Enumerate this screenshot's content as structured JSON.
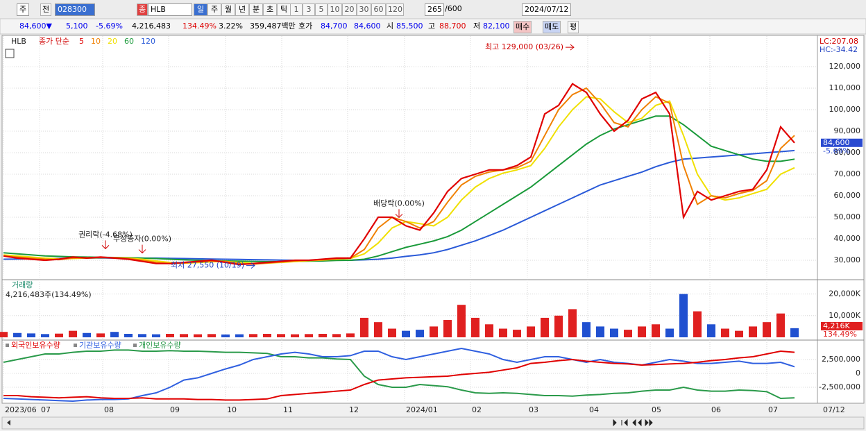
{
  "toolbar": {
    "market": "주",
    "prev": "전",
    "code": "028300",
    "badge": "종",
    "name": "HLB",
    "periods": [
      "일",
      "주",
      "월",
      "년",
      "분",
      "초",
      "틱"
    ],
    "intervals": [
      "1",
      "3",
      "5",
      "10",
      "20",
      "30",
      "60",
      "120"
    ],
    "count": "265",
    "max": "/600",
    "date": "2024/07/12"
  },
  "quote": [
    {
      "text": "84,600▼",
      "color": "#0000ee"
    },
    {
      "text": "5,100",
      "color": "#0000ee"
    },
    {
      "text": "-5.69%",
      "color": "#0000ee"
    },
    {
      "text": "4,216,483",
      "color": "#000000"
    },
    {
      "text": "134.49%",
      "color": "#dd0000"
    },
    {
      "text": "3.22%",
      "color": "#000000"
    },
    {
      "text": "359,487백만",
      "color": "#000000"
    },
    {
      "text": "호가",
      "color": "#000000"
    },
    {
      "text": "84,700",
      "color": "#0000ee"
    },
    {
      "text": "84,600",
      "color": "#0000ee"
    },
    {
      "text": "시",
      "color": "#000000"
    },
    {
      "text": "85,500",
      "color": "#0000ee"
    },
    {
      "text": "고",
      "color": "#000000"
    },
    {
      "text": "88,700",
      "color": "#dd0000"
    },
    {
      "text": "저",
      "color": "#000000"
    },
    {
      "text": "82,100",
      "color": "#0000ee"
    }
  ],
  "buttons": [
    "매수",
    "매도",
    "평"
  ],
  "xaxis": {
    "xlim": [
      0,
      57
    ],
    "xticks": [
      {
        "value": 0,
        "label": "2023/06"
      },
      {
        "value": 2.6,
        "label": "07"
      },
      {
        "value": 7.15,
        "label": "08"
      },
      {
        "value": 11.9,
        "label": "09"
      },
      {
        "value": 16,
        "label": "10"
      },
      {
        "value": 20.05,
        "label": "11"
      },
      {
        "value": 24.8,
        "label": "12"
      },
      {
        "value": 28.9,
        "label": "2024/01"
      },
      {
        "value": 33.65,
        "label": "02"
      },
      {
        "value": 37.75,
        "label": "03"
      },
      {
        "value": 42.1,
        "label": "04"
      },
      {
        "value": 46.6,
        "label": "05"
      },
      {
        "value": 50.9,
        "label": "06"
      },
      {
        "value": 55,
        "label": "07"
      }
    ],
    "end_label": "07/12"
  },
  "chart_data": [
    {
      "type": "line",
      "title": "HLB",
      "legend_prefix": "종가 단순",
      "ylim": [
        21300,
        134200
      ],
      "yticks": [
        {
          "value": 30000,
          "label": "30,000"
        },
        {
          "value": 40000,
          "label": "40,000"
        },
        {
          "value": 50000,
          "label": "50,000"
        },
        {
          "value": 60000,
          "label": "60,000"
        },
        {
          "value": 70000,
          "label": "70,000"
        },
        {
          "value": 80000,
          "label": "80,000"
        },
        {
          "value": 90000,
          "label": "90,000"
        },
        {
          "value": 100000,
          "label": "100,000"
        },
        {
          "value": 110000,
          "label": "110,000"
        },
        {
          "value": 120000,
          "label": "120,000"
        }
      ],
      "grid": true,
      "lc": "LC:207.08",
      "hc": "HC:-34.42",
      "current_label": "84,600",
      "current_change": "-5.69%",
      "high": {
        "text": "최고 129,000 (03/26)",
        "x": 41.1,
        "value": 129000
      },
      "low": {
        "text": "최저 27,550 (10/19)",
        "x": 18.1,
        "value": 27550
      },
      "events": [
        {
          "text": "권리락(-4.68%)",
          "x": 7.35
        },
        {
          "text": "무상증자(0.00%)",
          "x": 10
        },
        {
          "text": "배당락(0.00%)",
          "x": 28.5
        }
      ],
      "series": [
        {
          "name": "5",
          "color": "#e00000",
          "values": [
            32000,
            31000,
            30500,
            30000,
            30500,
            31500,
            31000,
            31500,
            31000,
            30500,
            29500,
            28500,
            28500,
            29000,
            29500,
            30000,
            29000,
            28000,
            28500,
            29000,
            29500,
            30000,
            30000,
            30500,
            31000,
            31000,
            40000,
            50000,
            50000,
            46000,
            44000,
            52000,
            62000,
            68000,
            70000,
            72000,
            72000,
            74000,
            78000,
            98000,
            102000,
            112000,
            108000,
            98000,
            90000,
            95000,
            105000,
            108000,
            98000,
            50000,
            62000,
            58000,
            60000,
            62000,
            63000,
            72000,
            92000,
            84600
          ]
        },
        {
          "name": "10",
          "color": "#f08000",
          "values": [
            32000,
            31500,
            31000,
            30500,
            30300,
            31000,
            31200,
            31300,
            31200,
            30800,
            30000,
            29000,
            28500,
            28700,
            29200,
            29700,
            29500,
            28500,
            28200,
            28700,
            29200,
            29700,
            30000,
            30200,
            30700,
            31000,
            35000,
            45000,
            50000,
            48000,
            45000,
            48000,
            57000,
            65000,
            69000,
            71000,
            72000,
            73000,
            76000,
            88000,
            100000,
            107000,
            110000,
            103000,
            94000,
            92000,
            100000,
            106000,
            103000,
            74000,
            56000,
            60000,
            59000,
            61000,
            62500,
            67000,
            82000,
            88000
          ]
        },
        {
          "name": "20",
          "color": "#f0e000",
          "values": [
            32500,
            32000,
            31500,
            31000,
            30700,
            30800,
            31000,
            31200,
            31200,
            31000,
            30500,
            29700,
            29000,
            28700,
            28900,
            29300,
            29500,
            29000,
            28600,
            28700,
            29000,
            29400,
            29800,
            30100,
            30500,
            30800,
            33000,
            38000,
            45000,
            48000,
            47000,
            46000,
            50000,
            58000,
            64000,
            68000,
            70500,
            72000,
            74000,
            82000,
            92000,
            100000,
            106000,
            105000,
            99000,
            94000,
            96000,
            102000,
            104000,
            88000,
            70000,
            60000,
            58000,
            59000,
            61000,
            63000,
            70000,
            73000
          ]
        },
        {
          "name": "60",
          "color": "#1a9a3a",
          "values": [
            33500,
            33000,
            32500,
            32000,
            31800,
            31600,
            31500,
            31400,
            31300,
            31200,
            31000,
            30800,
            30500,
            30200,
            30000,
            29800,
            29700,
            29600,
            29500,
            29400,
            29400,
            29500,
            29600,
            29700,
            29900,
            30000,
            30500,
            32000,
            34000,
            36000,
            37500,
            39000,
            41000,
            44000,
            48000,
            52000,
            56000,
            60000,
            64000,
            69000,
            74000,
            79000,
            84000,
            88000,
            91000,
            93000,
            95000,
            97000,
            97000,
            93000,
            88000,
            83000,
            81000,
            79000,
            77000,
            76000,
            76000,
            77000
          ]
        },
        {
          "name": "120",
          "color": "#2a5ad8",
          "values": [
            30500,
            30600,
            30700,
            30800,
            30900,
            31000,
            31000,
            31000,
            31000,
            31000,
            31000,
            31000,
            30900,
            30800,
            30700,
            30600,
            30500,
            30400,
            30300,
            30200,
            30100,
            30000,
            30000,
            30000,
            30000,
            30000,
            30200,
            30500,
            31000,
            31800,
            32500,
            33500,
            35000,
            37000,
            39000,
            41500,
            44000,
            47000,
            50000,
            53000,
            56000,
            59000,
            62000,
            65000,
            67000,
            69000,
            71000,
            73500,
            75500,
            77000,
            77500,
            78000,
            78500,
            79000,
            79500,
            80000,
            80500,
            81000
          ]
        }
      ]
    },
    {
      "type": "bar",
      "title": "거래량",
      "subtitle": "4,216,483주(134.49%)",
      "ylim": [
        0,
        25000
      ],
      "yticks": [
        {
          "value": 10000,
          "label": "10,000K"
        },
        {
          "value": 20000,
          "label": "20,000K"
        }
      ],
      "current_label": "4,216K",
      "current_ratio": "134.49%",
      "up_color": "#e02020",
      "down_color": "#2050d0",
      "values": [
        2500,
        2000,
        1800,
        1500,
        1700,
        3000,
        2000,
        1800,
        2500,
        1600,
        1500,
        1400,
        1600,
        1500,
        1400,
        1500,
        1300,
        1400,
        1500,
        1600,
        1500,
        1400,
        1500,
        1600,
        1500,
        1800,
        9000,
        7000,
        4000,
        3000,
        3500,
        5000,
        8000,
        15000,
        9000,
        6000,
        4000,
        3500,
        5000,
        9000,
        10000,
        13000,
        7000,
        5000,
        4000,
        3500,
        5000,
        6000,
        4000,
        20000,
        12000,
        6000,
        4000,
        3000,
        5000,
        7000,
        11000,
        4216
      ]
    },
    {
      "type": "line",
      "ylim": [
        -5250000,
        5375000
      ],
      "yticks": [
        {
          "value": 2500000,
          "label": "2,500,000"
        },
        0,
        {
          "value": -2500000,
          "label": "-2,500,000"
        }
      ],
      "series": [
        {
          "name": "외국인보유수량",
          "color": "#e00000",
          "values": [
            -4000000,
            -4000000,
            -4200000,
            -4300000,
            -4400000,
            -4300000,
            -4200000,
            -4400000,
            -4500000,
            -4500000,
            -4400000,
            -4600000,
            -4600000,
            -4600000,
            -4700000,
            -4700000,
            -4800000,
            -4800000,
            -4700000,
            -4600000,
            -4000000,
            -3800000,
            -3600000,
            -3400000,
            -3200000,
            -3000000,
            -2000000,
            -1200000,
            -1000000,
            -800000,
            -700000,
            -600000,
            -500000,
            -200000,
            0,
            200000,
            600000,
            1000000,
            1800000,
            2000000,
            2300000,
            2500000,
            2200000,
            2000000,
            1800000,
            1700000,
            1500000,
            1600000,
            1700000,
            1800000,
            2000000,
            2300000,
            2500000,
            2800000,
            3000000,
            3500000,
            4000000,
            3800000
          ]
        },
        {
          "name": "기관보유수량",
          "color": "#3060e0",
          "values": [
            -4500000,
            -4600000,
            -4700000,
            -4800000,
            -4900000,
            -5000000,
            -4800000,
            -4700000,
            -4700000,
            -4600000,
            -4000000,
            -3500000,
            -2500000,
            -1200000,
            -800000,
            0,
            800000,
            1500000,
            2500000,
            3000000,
            3500000,
            3800000,
            3500000,
            3000000,
            3000000,
            3200000,
            4000000,
            4000000,
            3000000,
            2500000,
            3000000,
            3500000,
            4000000,
            4500000,
            4000000,
            3500000,
            2500000,
            2000000,
            2500000,
            3000000,
            3000000,
            2500000,
            2000000,
            2500000,
            2000000,
            1800000,
            1500000,
            2000000,
            2500000,
            2200000,
            1800000,
            1800000,
            2000000,
            2200000,
            1800000,
            1800000,
            2000000,
            1200000
          ]
        },
        {
          "name": "개인보유수량",
          "color": "#2a9a4a",
          "values": [
            2000000,
            2500000,
            3000000,
            3500000,
            3500000,
            3800000,
            4000000,
            4000000,
            4200000,
            4200000,
            4000000,
            4000000,
            4100000,
            4000000,
            4000000,
            3900000,
            3800000,
            3800000,
            3700000,
            3600000,
            3000000,
            3000000,
            2800000,
            2800000,
            2600000,
            2500000,
            -500000,
            -2000000,
            -2500000,
            -2500000,
            -2000000,
            -2200000,
            -2400000,
            -3000000,
            -3500000,
            -3600000,
            -3500000,
            -3600000,
            -3800000,
            -4000000,
            -4000000,
            -4100000,
            -3900000,
            -3800000,
            -3600000,
            -3500000,
            -3200000,
            -3000000,
            -3000000,
            -2500000,
            -3000000,
            -3200000,
            -3200000,
            -3000000,
            -3100000,
            -3300000,
            -4500000,
            -4400000
          ]
        }
      ]
    }
  ]
}
